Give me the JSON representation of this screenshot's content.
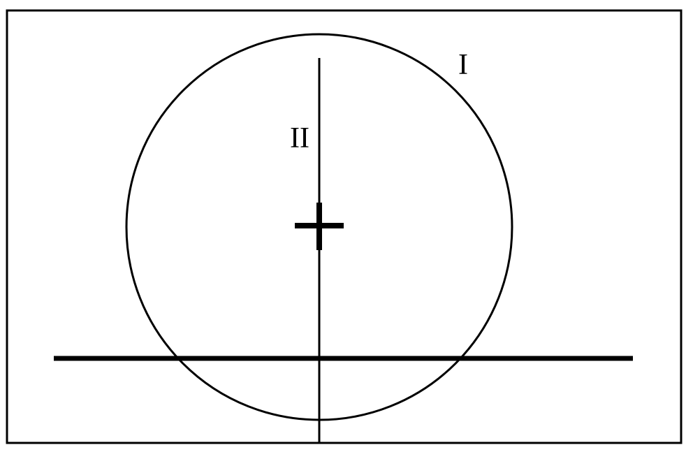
{
  "diagram": {
    "labels": {
      "circle": "I",
      "vertical_line": "II"
    },
    "colors": {
      "stroke": "#000000",
      "background": "#ffffff"
    }
  }
}
